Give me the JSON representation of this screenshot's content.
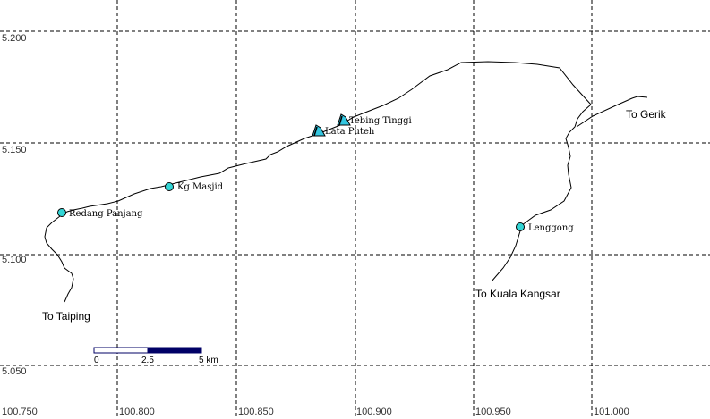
{
  "map": {
    "x_ticks": [
      "100.750",
      "100.800",
      "100.850",
      "100.900",
      "100.950",
      "101.000"
    ],
    "y_ticks": [
      "5.200",
      "5.150",
      "5.100",
      "5.050"
    ],
    "road_color": "#000000",
    "grid_color": "#000000",
    "marker_color": "#33d6d6",
    "waterfall_icon_color": "#33c6e0",
    "scale_bar": {
      "labels": [
        "0",
        "2.5",
        "5 km"
      ],
      "colors": [
        "#ffffff",
        "#000066"
      ]
    },
    "towns": [
      {
        "name": "Redang Panjang",
        "icon": "circle-marker-icon"
      },
      {
        "name": "Kg Masjid",
        "icon": "circle-marker-icon"
      },
      {
        "name": "Lenggong",
        "icon": "circle-marker-icon"
      }
    ],
    "waterfalls": [
      {
        "name": "Tebing Tinggi",
        "icon": "waterfall-icon"
      },
      {
        "name": "Lata Puteh",
        "icon": "waterfall-icon"
      }
    ],
    "destinations": [
      "To Gerik",
      "To Kuala Kangsar",
      "To Taiping"
    ]
  }
}
